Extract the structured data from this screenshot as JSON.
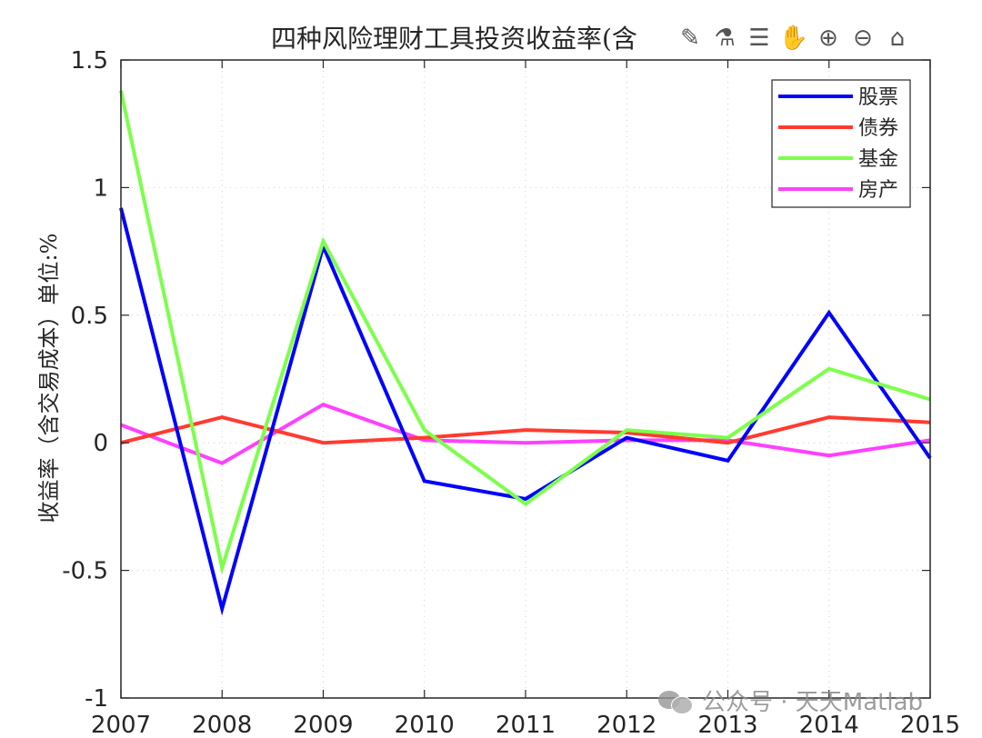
{
  "chart_data": {
    "type": "line",
    "title": "四种风险理财工具投资收益率(含",
    "xlabel": "",
    "ylabel": "收益率（含交易成本）单位:%",
    "x": [
      2007,
      2008,
      2009,
      2010,
      2011,
      2012,
      2013,
      2014,
      2015
    ],
    "x_ticks": [
      "2007",
      "2008",
      "2009",
      "2010",
      "2011",
      "2012",
      "2013",
      "2014",
      "2015"
    ],
    "xlim": [
      2007,
      2015
    ],
    "ylim": [
      -1,
      1.5
    ],
    "y_ticks": [
      "-1",
      "-0.5",
      "0",
      "0.5",
      "1",
      "1.5"
    ],
    "grid": true,
    "legend_position": "top-right",
    "series": [
      {
        "name": "股票",
        "color": "#0000ff",
        "values": [
          0.92,
          -0.65,
          0.77,
          -0.15,
          -0.22,
          0.02,
          -0.07,
          0.51,
          -0.06
        ]
      },
      {
        "name": "债券",
        "color": "#ff3b30",
        "values": [
          0.0,
          0.1,
          0.0,
          0.02,
          0.05,
          0.04,
          0.0,
          0.1,
          0.08
        ]
      },
      {
        "name": "基金",
        "color": "#7cff4a",
        "values": [
          1.38,
          -0.49,
          0.79,
          0.05,
          -0.24,
          0.05,
          0.02,
          0.29,
          0.17
        ]
      },
      {
        "name": "房产",
        "color": "#ff40ff",
        "values": [
          0.07,
          -0.08,
          0.15,
          0.01,
          0.0,
          0.01,
          0.01,
          -0.05,
          0.01
        ]
      }
    ]
  },
  "toolbar": {
    "icons": [
      "brush-icon",
      "data-tip-icon",
      "legend-icon",
      "pan-icon",
      "zoom-in-icon",
      "zoom-out-icon",
      "home-icon"
    ]
  },
  "watermark": {
    "text": "公众号 · 天天Matlab"
  }
}
